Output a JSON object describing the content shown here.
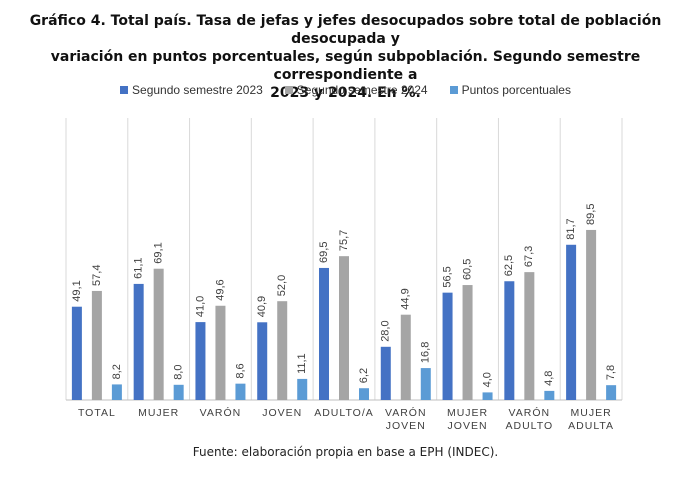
{
  "title_lines": [
    "Gráfico 4. Total país. Tasa de jefas y jefes desocupados sobre total de población desocupada y",
    "variación en puntos porcentuales, según subpoblación. Segundo semestre correspondiente a",
    "2023 y 2024. En %."
  ],
  "source": "Fuente: elaboración propia en base a EPH (INDEC).",
  "colors": {
    "s2023": "#4472c4",
    "s2024": "#a5a5a5",
    "pp": "#5b9bd5"
  },
  "chart_data": {
    "type": "bar",
    "categories": [
      "TOTAL",
      "MUJER",
      "VARÓN",
      "JOVEN",
      "ADULTO/A",
      "VARÓN\nJOVEN",
      "MUJER\nJOVEN",
      "VARÓN\nADULTO",
      "MUJER\nADULTA"
    ],
    "series": [
      {
        "name": "Segundo semestre 2023",
        "values": [
          49.1,
          61.1,
          41.0,
          40.9,
          69.5,
          28.0,
          56.5,
          62.5,
          81.7
        ],
        "labels": [
          "49,1",
          "61,1",
          "41,0",
          "40,9",
          "69,5",
          "28,0",
          "56,5",
          "62,5",
          "81,7"
        ]
      },
      {
        "name": "Segundo semestre 2024",
        "values": [
          57.4,
          69.1,
          49.6,
          52.0,
          75.7,
          44.9,
          60.5,
          67.3,
          89.5
        ],
        "labels": [
          "57,4",
          "69,1",
          "49,6",
          "52,0",
          "75,7",
          "44,9",
          "60,5",
          "67,3",
          "89,5"
        ]
      },
      {
        "name": "Puntos porcentuales",
        "values": [
          8.2,
          8.0,
          8.6,
          11.1,
          6.2,
          16.8,
          4.0,
          4.8,
          7.8
        ],
        "labels": [
          "8,2",
          "8,0",
          "8,6",
          "11,1",
          "6,2",
          "16,8",
          "4,0",
          "4,8",
          "7,8"
        ]
      }
    ],
    "ylim": [
      0,
      100
    ],
    "grid": "vertical category separators",
    "legend": "top-center"
  }
}
